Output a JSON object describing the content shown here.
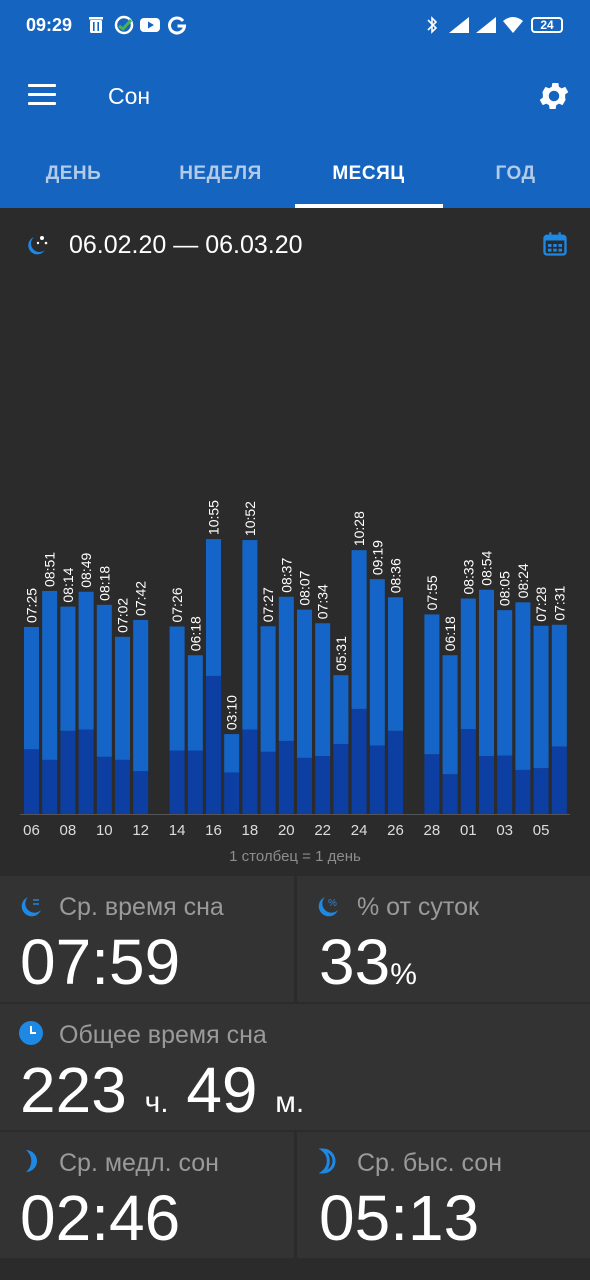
{
  "statusbar": {
    "time": "09:29",
    "battery": "24"
  },
  "appbar": {
    "title": "Сон"
  },
  "tabs": [
    {
      "label": "ДЕНЬ",
      "active": false
    },
    {
      "label": "НЕДЕЛЯ",
      "active": false
    },
    {
      "label": "МЕСЯЦ",
      "active": true
    },
    {
      "label": "ГОД",
      "active": false
    }
  ],
  "range": {
    "text": "06.02.20 — 06.03.20"
  },
  "colors": {
    "header": "#1565c0",
    "light_sleep": "#1565c8",
    "deep_sleep": "#0d3fa3",
    "background": "#2b2b2b"
  },
  "chart_data": {
    "type": "bar",
    "stacked": true,
    "caption": "1 столбец = 1 день",
    "x_ticks": [
      "06",
      "08",
      "10",
      "12",
      "14",
      "16",
      "18",
      "20",
      "22",
      "24",
      "26",
      "28",
      "01",
      "03",
      "05"
    ],
    "categories": [
      "06",
      "07",
      "08",
      "09",
      "10",
      "11",
      "12",
      "13",
      "14",
      "15",
      "16",
      "17",
      "18",
      "19",
      "20",
      "21",
      "22",
      "23",
      "24",
      "25",
      "26",
      "27",
      "28",
      "29",
      "01",
      "02",
      "03",
      "04",
      "05",
      "06"
    ],
    "labels": [
      "07:25",
      "08:51",
      "08:14",
      "08:49",
      "08:18",
      "07:02",
      "07:42",
      "",
      "07:26",
      "06:18",
      "10:55",
      "03:10",
      "10:52",
      "07:27",
      "08:37",
      "08:07",
      "07:34",
      "05:31",
      "10:28",
      "09:19",
      "08:36",
      "",
      "07:55",
      "06:18",
      "08:33",
      "08:54",
      "08:05",
      "08:24",
      "07:28",
      "07:31"
    ],
    "series": [
      {
        "name": "deep",
        "values": [
          2.57,
          2.15,
          3.3,
          3.35,
          2.27,
          2.15,
          1.7,
          0,
          2.52,
          2.52,
          5.48,
          1.65,
          3.35,
          2.47,
          2.9,
          2.23,
          2.3,
          2.78,
          4.17,
          2.72,
          3.3,
          0,
          2.37,
          1.58,
          3.37,
          2.3,
          2.32,
          1.75,
          1.82,
          2.68
        ]
      },
      {
        "name": "light",
        "values": [
          4.85,
          6.7,
          4.93,
          5.47,
          6.03,
          4.88,
          6.0,
          0,
          4.92,
          3.78,
          5.43,
          1.52,
          7.52,
          4.98,
          5.72,
          5.88,
          5.27,
          2.73,
          6.3,
          6.6,
          5.3,
          0,
          5.55,
          4.72,
          5.18,
          6.6,
          5.77,
          6.65,
          5.65,
          4.83
        ]
      }
    ]
  },
  "cards": {
    "avg_sleep": {
      "label": "Ср. время сна",
      "value": "07:59"
    },
    "percent": {
      "label": "% от суток",
      "value": "33",
      "unit": "%"
    },
    "total": {
      "label": "Общее время сна",
      "hours": "223",
      "h_unit": "ч.",
      "minutes": "49",
      "m_unit": "м."
    },
    "deep": {
      "label": "Ср. медл. сон",
      "value": "02:46"
    },
    "rem": {
      "label": "Ср. быс. сон",
      "value": "05:13"
    }
  }
}
